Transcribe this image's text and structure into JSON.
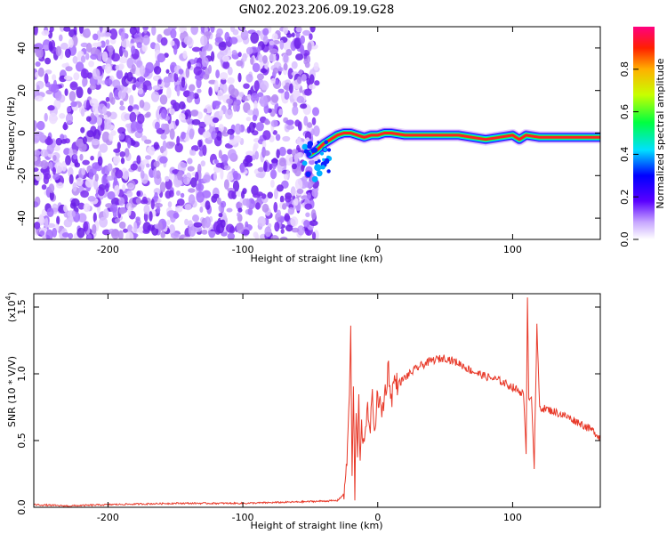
{
  "title": "GN02.2023.206.09.19.G28",
  "colors": {
    "dots": "#7a2cf0",
    "snr_line": "#e83a2a",
    "frame": "#000000"
  },
  "chart_data": [
    {
      "type": "heatmap",
      "name": "spectrogram",
      "xlabel": "Height of straight line (km)",
      "ylabel": "Frequency (Hz)",
      "xlim": [
        -255,
        165
      ],
      "ylim": [
        -50,
        50
      ],
      "xticks": [
        -200,
        -100,
        0,
        100
      ],
      "yticks": [
        -40,
        -20,
        0,
        20,
        40
      ],
      "xtick_labels": [
        "-200",
        "-100",
        "0",
        "100"
      ],
      "ytick_labels": [
        "-40",
        "-20",
        "0",
        "20",
        "40"
      ],
      "noise_region_x": [
        -255,
        -45
      ],
      "signal_track": {
        "x": [
          -50,
          -45,
          -40,
          -35,
          -30,
          -25,
          -20,
          -15,
          -10,
          -5,
          0,
          5,
          10,
          20,
          40,
          60,
          70,
          80,
          90,
          100,
          105,
          110,
          120,
          140,
          165
        ],
        "y": [
          -10,
          -8,
          -5,
          -3,
          -1,
          0,
          0,
          -1,
          -2,
          -1,
          -1,
          0,
          0,
          -1,
          -1,
          -1,
          -2,
          -3,
          -2,
          -1,
          -3,
          -1,
          -2,
          -2,
          -2
        ]
      },
      "colorbar": {
        "label": "Normalized spectral amplitude",
        "range": [
          0,
          1
        ],
        "ticks": [
          0.0,
          0.2,
          0.4,
          0.6,
          0.8
        ],
        "tick_labels": [
          "0.0",
          "0.2",
          "0.4",
          "0.6",
          "0.8"
        ]
      }
    },
    {
      "type": "line",
      "name": "snr",
      "xlabel": "Height of straight line (km)",
      "ylabel": "SNR (10 * V/V)",
      "scale_label": "(x10",
      "scale_exp": "4",
      "xlim": [
        -255,
        165
      ],
      "ylim": [
        0,
        1.6
      ],
      "xticks": [
        -200,
        -100,
        0,
        100
      ],
      "yticks": [
        0.0,
        0.5,
        1.0,
        1.5
      ],
      "xtick_labels": [
        "-200",
        "-100",
        "0",
        "100"
      ],
      "ytick_labels": [
        "0.0",
        "0.5",
        "1.0",
        "1.5"
      ],
      "series": [
        {
          "x": [
            -255,
            -230,
            -200,
            -150,
            -100,
            -60,
            -30,
            -25,
            -22,
            -20,
            -19,
            -18,
            -17,
            -16,
            -15,
            -14,
            -13,
            -12,
            -10,
            -8,
            -6,
            -4,
            -2,
            0,
            3,
            6,
            8,
            10,
            12,
            15,
            20,
            30,
            40,
            50,
            60,
            70,
            80,
            90,
            100,
            105,
            108,
            110,
            111,
            112,
            114,
            116,
            118,
            120,
            130,
            140,
            150,
            160,
            165
          ],
          "y": [
            0.02,
            0.01,
            0.02,
            0.03,
            0.03,
            0.04,
            0.05,
            0.1,
            0.5,
            1.3,
            0.2,
            0.9,
            0.1,
            0.7,
            0.4,
            0.8,
            0.3,
            0.6,
            0.5,
            0.75,
            0.55,
            0.8,
            0.6,
            0.85,
            0.7,
            0.9,
            1.05,
            0.8,
            0.95,
            0.92,
            0.97,
            1.05,
            1.1,
            1.12,
            1.08,
            1.02,
            0.98,
            0.95,
            0.9,
            0.87,
            0.85,
            0.4,
            1.6,
            0.8,
            0.85,
            0.3,
            1.35,
            0.75,
            0.72,
            0.68,
            0.63,
            0.57,
            0.52
          ]
        }
      ]
    }
  ]
}
